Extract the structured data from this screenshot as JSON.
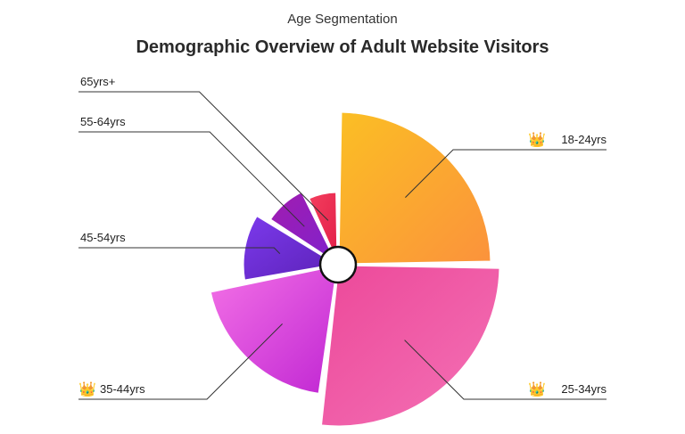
{
  "header": {
    "subtitle": "Age Segmentation",
    "title": "Demographic Overview of Adult Website Visitors"
  },
  "chart_data": {
    "type": "pie",
    "subtitle": "Age Segmentation",
    "title": "Demographic Overview of Adult Website Visitors",
    "variant": "variable-radius pie (nightingale style) with center hole",
    "categories": [
      "18-24yrs",
      "25-34yrs",
      "35-44yrs",
      "45-54yrs",
      "55-64yrs",
      "65yrs+"
    ],
    "values": [
      25,
      27,
      20,
      12,
      9,
      7
    ],
    "colors": [
      [
        "#FBBF24",
        "#FB923C"
      ],
      [
        "#EC4899",
        "#F472B6"
      ],
      [
        "#F472E6",
        "#C026D3"
      ],
      [
        "#7C3AED",
        "#5B21B6"
      ],
      [
        "#A21CAF",
        "#7E22CE"
      ],
      [
        "#F43F5E",
        "#E11D48"
      ]
    ],
    "markers": [
      {
        "category": "18-24yrs",
        "icon": "gold-crown-icon",
        "glyph": "👑"
      },
      {
        "category": "25-34yrs",
        "icon": "silver-crown-icon",
        "glyph": "👑"
      },
      {
        "category": "35-44yrs",
        "icon": "bronze-crown-icon",
        "glyph": "👑"
      }
    ],
    "legend": "none (callout labels)"
  }
}
